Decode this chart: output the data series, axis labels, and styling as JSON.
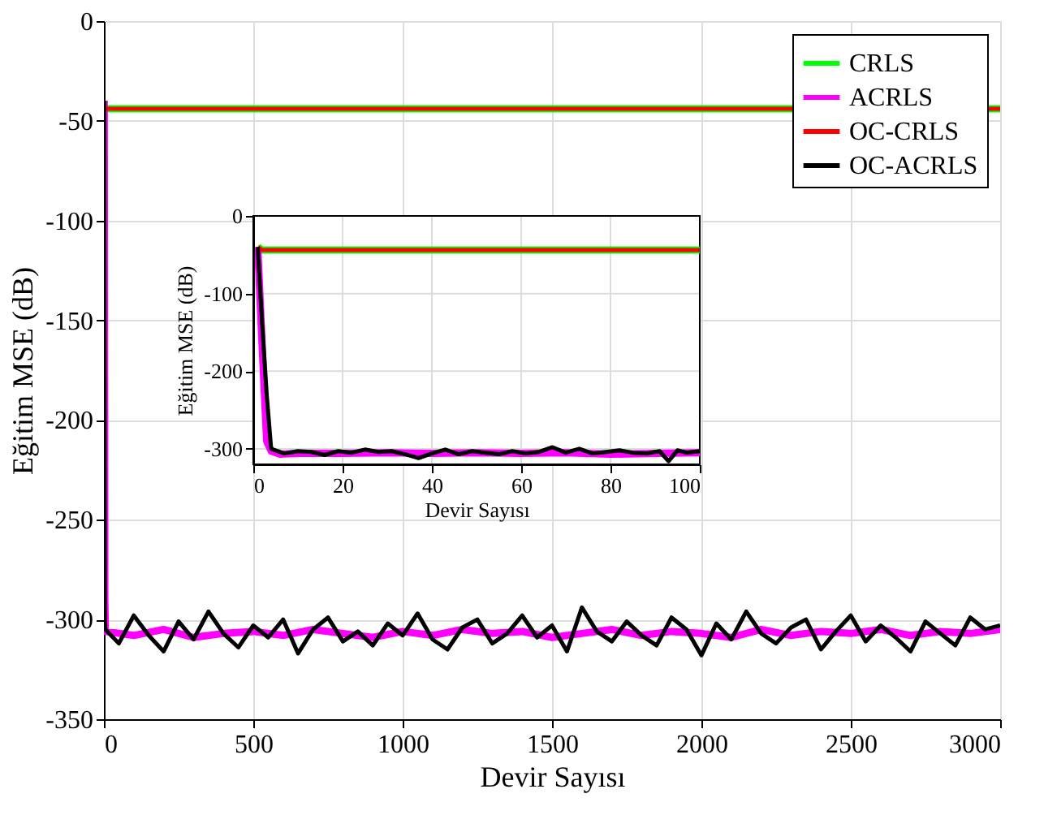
{
  "chart_data": [
    {
      "type": "line",
      "xlabel": "Devir Sayısı",
      "ylabel": "Eğitim MSE (dB)",
      "xlim": [
        0,
        3000
      ],
      "xticks": [
        0,
        500,
        1000,
        1500,
        2000,
        2500,
        3000
      ],
      "ylim": [
        -350,
        0
      ],
      "yticks": [
        -350,
        -300,
        -250,
        -200,
        -150,
        -100,
        -50,
        0
      ],
      "grid": true,
      "legend": "top right",
      "series": [
        {
          "name": "CRLS",
          "color": "#00ff00",
          "x": [
            1,
            2,
            3000
          ],
          "values": [
            -40,
            -44,
            -44
          ]
        },
        {
          "name": "ACRLS",
          "color": "#ff00ff",
          "x": [
            1,
            3,
            5,
            100,
            200,
            300,
            400,
            500,
            600,
            700,
            800,
            900,
            1000,
            1100,
            1200,
            1300,
            1400,
            1500,
            1600,
            1700,
            1800,
            1900,
            2000,
            2100,
            2200,
            2300,
            2400,
            2500,
            2600,
            2700,
            2800,
            2900,
            3000
          ],
          "values": [
            -40,
            -290,
            -306,
            -308,
            -305,
            -309,
            -307,
            -306,
            -308,
            -305,
            -307,
            -309,
            -306,
            -308,
            -305,
            -307,
            -306,
            -309,
            -307,
            -305,
            -308,
            -306,
            -307,
            -309,
            -305,
            -308,
            -306,
            -307,
            -305,
            -308,
            -306,
            -307,
            -305
          ]
        },
        {
          "name": "OC-CRLS",
          "color": "#ff0000",
          "x": [
            1,
            2,
            3000
          ],
          "values": [
            -40,
            -44,
            -44
          ]
        },
        {
          "name": "OC-ACRLS",
          "color": "#000000",
          "x": [
            1,
            3,
            5,
            50,
            100,
            150,
            200,
            250,
            300,
            350,
            400,
            450,
            500,
            550,
            600,
            650,
            700,
            750,
            800,
            850,
            900,
            950,
            1000,
            1050,
            1100,
            1150,
            1200,
            1250,
            1300,
            1350,
            1400,
            1450,
            1500,
            1550,
            1600,
            1650,
            1700,
            1750,
            1800,
            1850,
            1900,
            1950,
            2000,
            2050,
            2100,
            2150,
            2200,
            2250,
            2300,
            2350,
            2400,
            2450,
            2500,
            2550,
            2600,
            2650,
            2700,
            2750,
            2800,
            2850,
            2900,
            2950,
            3000
          ],
          "values": [
            -40,
            -300,
            -305,
            -312,
            -298,
            -308,
            -316,
            -301,
            -310,
            -296,
            -307,
            -314,
            -303,
            -309,
            -300,
            -317,
            -305,
            -299,
            -311,
            -306,
            -313,
            -302,
            -308,
            -297,
            -310,
            -315,
            -304,
            -300,
            -312,
            -307,
            -298,
            -309,
            -303,
            -316,
            -294,
            -306,
            -311,
            -301,
            -308,
            -313,
            -299,
            -305,
            -318,
            -302,
            -310,
            -296,
            -307,
            -312,
            -304,
            -300,
            -315,
            -306,
            -298,
            -311,
            -303,
            -309,
            -316,
            -301,
            -307,
            -313,
            -299,
            -305,
            -303
          ]
        }
      ]
    },
    {
      "type": "line",
      "xlabel": "Devir Sayısı",
      "ylabel": "Eğitim MSE (dB)",
      "xlim": [
        0,
        100
      ],
      "xticks": [
        0,
        20,
        40,
        60,
        80,
        100
      ],
      "ylim": [
        -320,
        0
      ],
      "yticks": [
        -300,
        -200,
        -100,
        0
      ],
      "grid": true,
      "series": [
        {
          "color": "#00ff00",
          "x": [
            1,
            2,
            100
          ],
          "values": [
            -40,
            -44,
            -44
          ]
        },
        {
          "color": "#ff00ff",
          "x": [
            1,
            2,
            3,
            4,
            6,
            10,
            20,
            30,
            40,
            50,
            60,
            70,
            80,
            90,
            100
          ],
          "values": [
            -40,
            -170,
            -290,
            -303,
            -307,
            -306,
            -306,
            -305,
            -306,
            -305,
            -306,
            -305,
            -307,
            -306,
            -305
          ]
        },
        {
          "color": "#ff0000",
          "x": [
            1,
            2,
            100
          ],
          "values": [
            -40,
            -44,
            -44
          ]
        },
        {
          "color": "#000000",
          "x": [
            1,
            2,
            3,
            4,
            5,
            7,
            10,
            13,
            16,
            19,
            22,
            25,
            28,
            31,
            34,
            37,
            40,
            43,
            46,
            49,
            52,
            55,
            58,
            61,
            64,
            67,
            70,
            73,
            76,
            79,
            82,
            85,
            88,
            91,
            93,
            95,
            97,
            100
          ],
          "values": [
            -40,
            -140,
            -230,
            -300,
            -302,
            -306,
            -303,
            -304,
            -308,
            -303,
            -305,
            -301,
            -304,
            -303,
            -307,
            -312,
            -306,
            -301,
            -307,
            -303,
            -305,
            -307,
            -303,
            -306,
            -304,
            -298,
            -305,
            -300,
            -306,
            -304,
            -302,
            -305,
            -306,
            -303,
            -316,
            -302,
            -305,
            -303
          ]
        }
      ]
    }
  ]
}
